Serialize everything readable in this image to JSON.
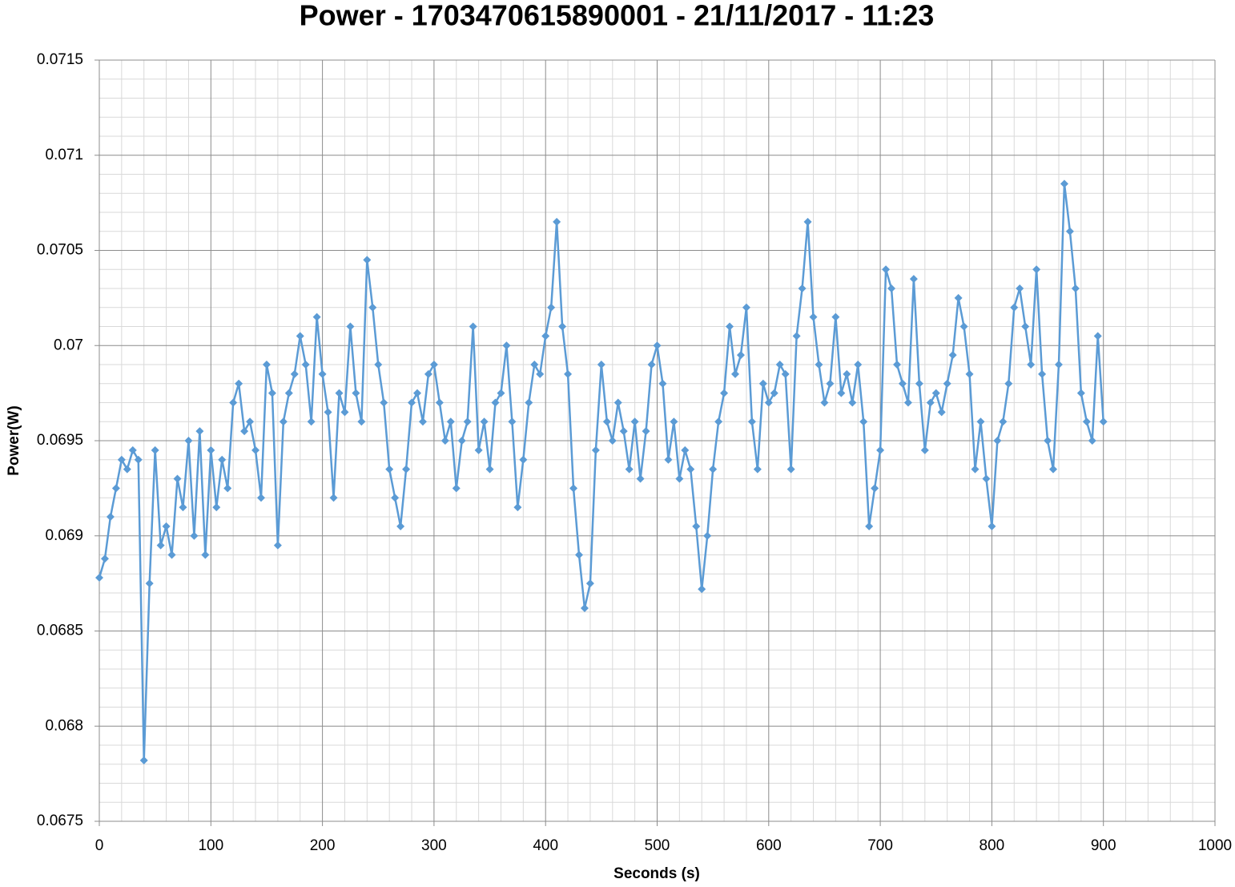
{
  "chart_data": {
    "type": "line",
    "title": "Power - 1703470615890001 - 21/11/2017 - 11:23",
    "x_label": "Seconds (s)",
    "y_label": "Power(W)",
    "color": "#5b9bd5",
    "grid": true,
    "minor_grid": true,
    "markers": "diamond",
    "xlim": [
      0,
      1000
    ],
    "xticks": [
      0,
      100,
      200,
      300,
      400,
      500,
      600,
      700,
      800,
      900,
      1000
    ],
    "ylim": [
      0.0675,
      0.0715
    ],
    "yticks": [
      0.0675,
      0.068,
      0.0685,
      0.069,
      0.0695,
      0.07,
      0.0705,
      0.071,
      0.0715
    ],
    "x": [
      0,
      5,
      10,
      15,
      20,
      25,
      30,
      35,
      40,
      45,
      50,
      55,
      60,
      65,
      70,
      75,
      80,
      85,
      90,
      95,
      100,
      105,
      110,
      115,
      120,
      125,
      130,
      135,
      140,
      145,
      150,
      155,
      160,
      165,
      170,
      175,
      180,
      185,
      190,
      195,
      200,
      205,
      210,
      215,
      220,
      225,
      230,
      235,
      240,
      245,
      250,
      255,
      260,
      265,
      270,
      275,
      280,
      285,
      290,
      295,
      300,
      305,
      310,
      315,
      320,
      325,
      330,
      335,
      340,
      345,
      350,
      355,
      360,
      365,
      370,
      375,
      380,
      385,
      390,
      395,
      400,
      405,
      410,
      415,
      420,
      425,
      430,
      435,
      440,
      445,
      450,
      455,
      460,
      465,
      470,
      475,
      480,
      485,
      490,
      495,
      500,
      505,
      510,
      515,
      520,
      525,
      530,
      535,
      540,
      545,
      550,
      555,
      560,
      565,
      570,
      575,
      580,
      585,
      590,
      595,
      600,
      605,
      610,
      615,
      620,
      625,
      630,
      635,
      640,
      645,
      650,
      655,
      660,
      665,
      670,
      675,
      680,
      685,
      690,
      695,
      700,
      705,
      710,
      715,
      720,
      725,
      730,
      735,
      740,
      745,
      750,
      755,
      760,
      765,
      770,
      775,
      780,
      785,
      790,
      795,
      800,
      805,
      810,
      815,
      820,
      825,
      830,
      835,
      840,
      845,
      850,
      855,
      860,
      865,
      870,
      875,
      880,
      885,
      890,
      895,
      900
    ],
    "values": [
      0.06878,
      0.06888,
      0.0691,
      0.06925,
      0.0694,
      0.06935,
      0.06945,
      0.0694,
      0.06782,
      0.06875,
      0.06945,
      0.06895,
      0.06905,
      0.0689,
      0.0693,
      0.06915,
      0.0695,
      0.069,
      0.06955,
      0.0689,
      0.06945,
      0.06915,
      0.0694,
      0.06925,
      0.0697,
      0.0698,
      0.06955,
      0.0696,
      0.06945,
      0.0692,
      0.0699,
      0.06975,
      0.06895,
      0.0696,
      0.06975,
      0.06985,
      0.07005,
      0.0699,
      0.0696,
      0.07015,
      0.06985,
      0.06965,
      0.0692,
      0.06975,
      0.06965,
      0.0701,
      0.06975,
      0.0696,
      0.07045,
      0.0702,
      0.0699,
      0.0697,
      0.06935,
      0.0692,
      0.06905,
      0.06935,
      0.0697,
      0.06975,
      0.0696,
      0.06985,
      0.0699,
      0.0697,
      0.0695,
      0.0696,
      0.06925,
      0.0695,
      0.0696,
      0.0701,
      0.06945,
      0.0696,
      0.06935,
      0.0697,
      0.06975,
      0.07,
      0.0696,
      0.06915,
      0.0694,
      0.0697,
      0.0699,
      0.06985,
      0.07005,
      0.0702,
      0.07065,
      0.0701,
      0.06985,
      0.06925,
      0.0689,
      0.06862,
      0.06875,
      0.06945,
      0.0699,
      0.0696,
      0.0695,
      0.0697,
      0.06955,
      0.06935,
      0.0696,
      0.0693,
      0.06955,
      0.0699,
      0.07,
      0.0698,
      0.0694,
      0.0696,
      0.0693,
      0.06945,
      0.06935,
      0.06905,
      0.06872,
      0.069,
      0.06935,
      0.0696,
      0.06975,
      0.0701,
      0.06985,
      0.06995,
      0.0702,
      0.0696,
      0.06935,
      0.0698,
      0.0697,
      0.06975,
      0.0699,
      0.06985,
      0.06935,
      0.07005,
      0.0703,
      0.07065,
      0.07015,
      0.0699,
      0.0697,
      0.0698,
      0.07015,
      0.06975,
      0.06985,
      0.0697,
      0.0699,
      0.0696,
      0.06905,
      0.06925,
      0.06945,
      0.0704,
      0.0703,
      0.0699,
      0.0698,
      0.0697,
      0.07035,
      0.0698,
      0.06945,
      0.0697,
      0.06975,
      0.06965,
      0.0698,
      0.06995,
      0.07025,
      0.0701,
      0.06985,
      0.06935,
      0.0696,
      0.0693,
      0.06905,
      0.0695,
      0.0696,
      0.0698,
      0.0702,
      0.0703,
      0.0701,
      0.0699,
      0.0704,
      0.06985,
      0.0695,
      0.06935,
      0.0699,
      0.07085,
      0.0706,
      0.0703,
      0.06975,
      0.0696,
      0.0695,
      0.07005,
      0.0696
    ]
  }
}
